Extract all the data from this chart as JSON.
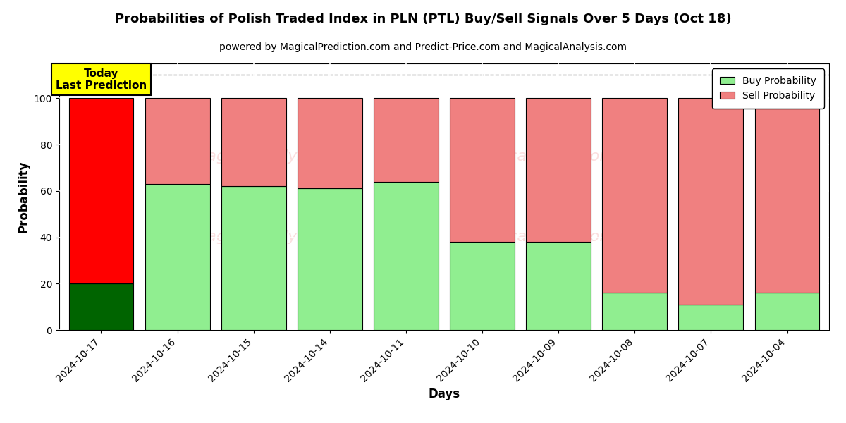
{
  "title": "Probabilities of Polish Traded Index in PLN (PTL) Buy/Sell Signals Over 5 Days (Oct 18)",
  "subtitle": "powered by MagicalPrediction.com and Predict-Price.com and MagicalAnalysis.com",
  "xlabel": "Days",
  "ylabel": "Probability",
  "dates": [
    "2024-10-17",
    "2024-10-16",
    "2024-10-15",
    "2024-10-14",
    "2024-10-11",
    "2024-10-10",
    "2024-10-09",
    "2024-10-08",
    "2024-10-07",
    "2024-10-04"
  ],
  "buy_values": [
    20,
    63,
    62,
    61,
    64,
    38,
    38,
    16,
    11,
    16
  ],
  "sell_values": [
    80,
    37,
    38,
    39,
    36,
    62,
    62,
    84,
    89,
    84
  ],
  "today_buy_color": "#006400",
  "today_sell_color": "#FF0000",
  "buy_color": "#90EE90",
  "sell_color": "#F08080",
  "today_annotation_bg": "#FFFF00",
  "today_annotation_text": "Today\nLast Prediction",
  "dashed_line_y": 110,
  "ylim": [
    0,
    115
  ],
  "yticks": [
    0,
    20,
    40,
    60,
    80,
    100
  ],
  "legend_buy_label": "Buy Probability",
  "legend_sell_label": "Sell Probability",
  "figsize": [
    12.0,
    6.0
  ],
  "dpi": 100,
  "bar_width": 0.85,
  "watermark_color": "#F08080",
  "watermark_alpha": 0.35,
  "bg_color": "#ffffff",
  "grid_color": "#cccccc"
}
